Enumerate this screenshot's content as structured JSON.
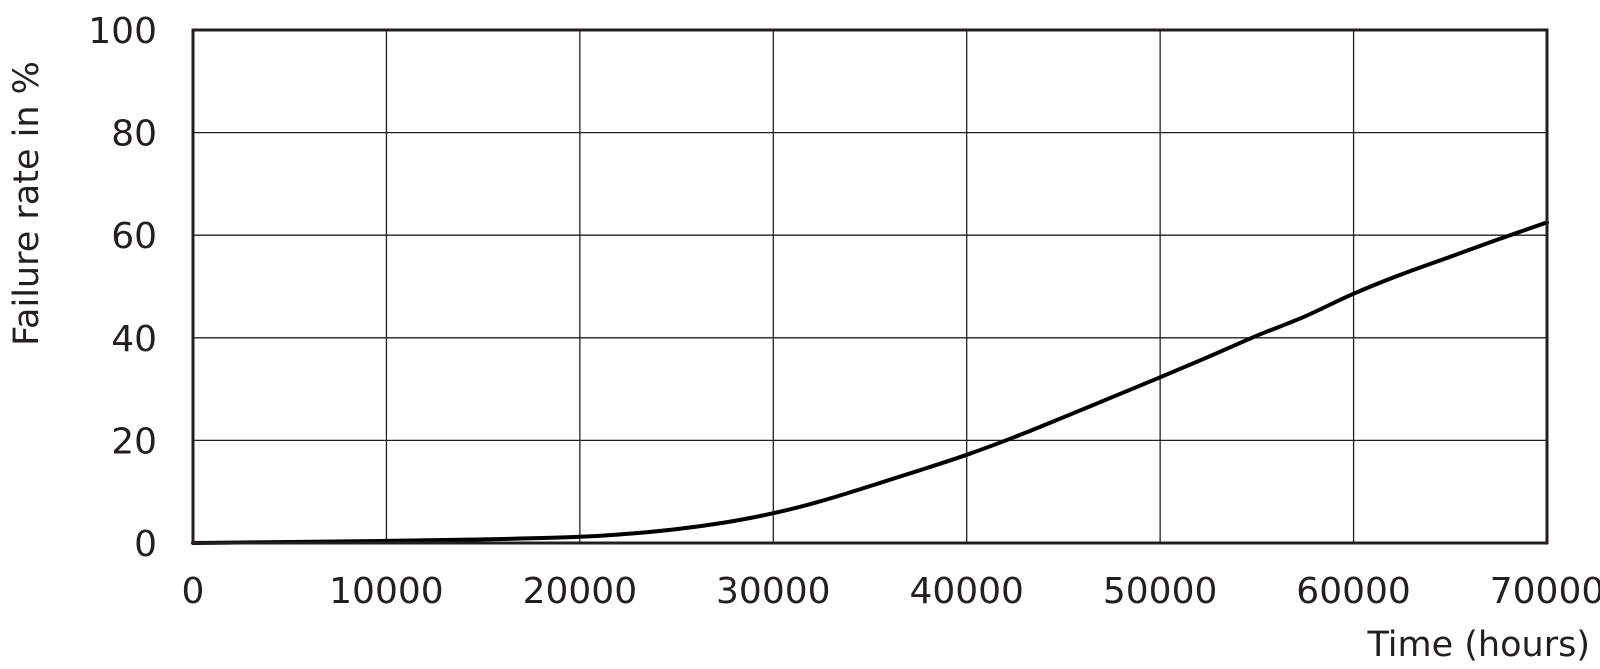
{
  "chart_data": {
    "type": "line",
    "title": "",
    "xlabel": "Time (hours)",
    "ylabel": "Failure rate in %",
    "xlim": [
      0,
      70000
    ],
    "ylim": [
      0,
      100
    ],
    "x_ticks": [
      0,
      10000,
      20000,
      30000,
      40000,
      50000,
      60000,
      70000
    ],
    "x_tick_labels": [
      "0",
      "10000",
      "20000",
      "30000",
      "40000",
      "50000",
      "60000",
      "70000"
    ],
    "y_ticks": [
      0,
      20,
      40,
      60,
      80,
      100
    ],
    "y_tick_labels": [
      "0",
      "20",
      "40",
      "60",
      "80",
      "100"
    ],
    "grid": true,
    "series": [
      {
        "color": "#000000",
        "x": [
          0,
          5000,
          10000,
          15000,
          20000,
          22500,
          25000,
          27500,
          30000,
          32500,
          35000,
          37500,
          40000,
          42500,
          45000,
          47500,
          50000,
          52500,
          55000,
          57500,
          60000,
          62500,
          65000,
          67500,
          70000
        ],
        "y": [
          0,
          0.2,
          0.4,
          0.7,
          1.2,
          1.8,
          2.7,
          4.0,
          5.8,
          8.2,
          11.1,
          14.1,
          17.2,
          20.7,
          24.5,
          28.4,
          32.3,
          36.3,
          40.4,
          44.2,
          48.6,
          52.4,
          55.8,
          59.2,
          62.5
        ]
      }
    ],
    "colors": {
      "axis": "#231f20",
      "series": "#000000"
    }
  }
}
